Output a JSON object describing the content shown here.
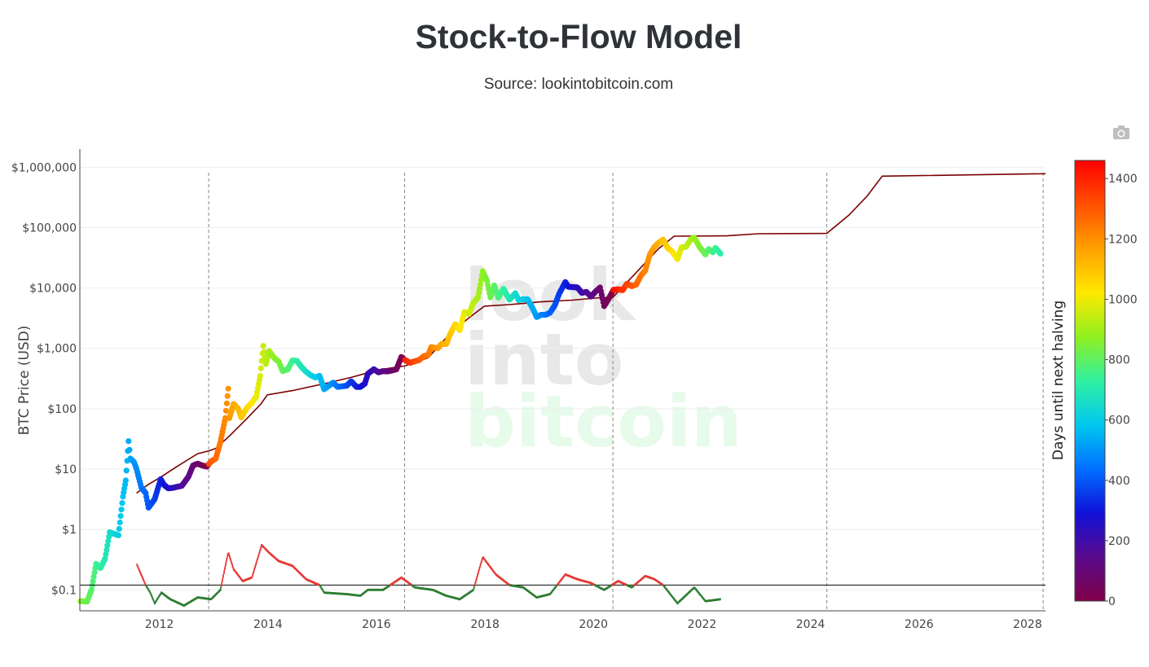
{
  "title": "Stock-to-Flow Model",
  "subtitle": "Source: lookintobitcoin.com",
  "toolbar": {
    "camera_icon": "camera-icon"
  },
  "watermark": {
    "line1": "look",
    "line2": "into",
    "line3": "bitcoin"
  },
  "chart_data": {
    "type": "scatter",
    "title": "Stock-to-Flow Model",
    "xlabel": "",
    "ylabel": "BTC Price (USD)",
    "y_scale": "log",
    "xlim": [
      "2010-07-15",
      "2028-05-01"
    ],
    "ylim": [
      0.045,
      2000000
    ],
    "x_ticks": [
      "2012",
      "2014",
      "2016",
      "2018",
      "2020",
      "2022",
      "2024",
      "2026",
      "2028"
    ],
    "y_ticks": [
      {
        "value": 0.1,
        "label": "$0.1"
      },
      {
        "value": 1,
        "label": "$1"
      },
      {
        "value": 10,
        "label": "$10"
      },
      {
        "value": 100,
        "label": "$100"
      },
      {
        "value": 1000,
        "label": "$1,000"
      },
      {
        "value": 10000,
        "label": "$10,000"
      },
      {
        "value": 100000,
        "label": "$100,000"
      },
      {
        "value": 1000000,
        "label": "$1,000,000"
      }
    ],
    "grid": true,
    "halving_lines": [
      "2012-11-28",
      "2016-07-09",
      "2020-05-11",
      "2024-04-20",
      "2028-04-15"
    ],
    "colorbar": {
      "title": "Days until next halving",
      "min": 0,
      "max": 1460,
      "ticks": [
        0,
        200,
        400,
        600,
        800,
        1000,
        1200,
        1400
      ],
      "colors": [
        "#800048",
        "#5a0a8c",
        "#1010d8",
        "#0070ff",
        "#00c8f0",
        "#30f0a0",
        "#90f020",
        "#ffe800",
        "#ffa000",
        "#ff5000",
        "#ff0000"
      ]
    },
    "series": [
      {
        "kind": "price",
        "points": [
          [
            "2010-07-20",
            0.065
          ],
          [
            "2010-09-01",
            0.064
          ],
          [
            "2010-10-01",
            0.1
          ],
          [
            "2010-11-01",
            0.27
          ],
          [
            "2010-12-01",
            0.23
          ],
          [
            "2011-01-01",
            0.33
          ],
          [
            "2011-02-01",
            0.9
          ],
          [
            "2011-03-01",
            0.85
          ],
          [
            "2011-04-01",
            0.8
          ],
          [
            "2011-05-01",
            3.5
          ],
          [
            "2011-05-20",
            6.5
          ],
          [
            "2011-06-08",
            29
          ],
          [
            "2011-06-20",
            15
          ],
          [
            "2011-07-15",
            13
          ],
          [
            "2011-08-01",
            10
          ],
          [
            "2011-09-01",
            5
          ],
          [
            "2011-10-01",
            4
          ],
          [
            "2011-10-20",
            2.3
          ],
          [
            "2011-11-10",
            2.7
          ],
          [
            "2011-12-01",
            3.2
          ],
          [
            "2012-01-10",
            6.8
          ],
          [
            "2012-02-01",
            5.5
          ],
          [
            "2012-03-01",
            4.8
          ],
          [
            "2012-04-01",
            4.9
          ],
          [
            "2012-06-01",
            5.3
          ],
          [
            "2012-07-15",
            7.5
          ],
          [
            "2012-08-15",
            11.5
          ],
          [
            "2012-09-15",
            12.3
          ],
          [
            "2012-10-15",
            11.5
          ],
          [
            "2012-11-15",
            11
          ],
          [
            "2012-12-15",
            13.4
          ],
          [
            "2013-01-15",
            15
          ],
          [
            "2013-02-15",
            28
          ],
          [
            "2013-03-20",
            70
          ],
          [
            "2013-04-09",
            215
          ],
          [
            "2013-04-16",
            70
          ],
          [
            "2013-05-15",
            120
          ],
          [
            "2013-06-15",
            100
          ],
          [
            "2013-07-05",
            72
          ],
          [
            "2013-08-15",
            105
          ],
          [
            "2013-09-15",
            125
          ],
          [
            "2013-10-15",
            160
          ],
          [
            "2013-11-10",
            350
          ],
          [
            "2013-12-01",
            1100
          ],
          [
            "2013-12-18",
            550
          ],
          [
            "2014-01-10",
            900
          ],
          [
            "2014-02-10",
            700
          ],
          [
            "2014-03-15",
            600
          ],
          [
            "2014-04-10",
            420
          ],
          [
            "2014-05-15",
            450
          ],
          [
            "2014-06-15",
            630
          ],
          [
            "2014-07-15",
            620
          ],
          [
            "2014-08-18",
            480
          ],
          [
            "2014-09-15",
            410
          ],
          [
            "2014-10-15",
            360
          ],
          [
            "2014-11-15",
            330
          ],
          [
            "2014-12-15",
            350
          ],
          [
            "2015-01-14",
            210
          ],
          [
            "2015-02-15",
            240
          ],
          [
            "2015-03-15",
            270
          ],
          [
            "2015-04-15",
            230
          ],
          [
            "2015-05-15",
            235
          ],
          [
            "2015-06-15",
            240
          ],
          [
            "2015-07-15",
            285
          ],
          [
            "2015-08-20",
            230
          ],
          [
            "2015-09-15",
            230
          ],
          [
            "2015-10-15",
            260
          ],
          [
            "2015-11-05",
            380
          ],
          [
            "2015-12-15",
            450
          ],
          [
            "2016-01-15",
            400
          ],
          [
            "2016-02-15",
            420
          ],
          [
            "2016-03-15",
            415
          ],
          [
            "2016-04-15",
            430
          ],
          [
            "2016-05-15",
            450
          ],
          [
            "2016-06-17",
            720
          ],
          [
            "2016-07-08",
            650
          ],
          [
            "2016-08-15",
            575
          ],
          [
            "2016-09-15",
            610
          ],
          [
            "2016-10-15",
            640
          ],
          [
            "2016-11-15",
            740
          ],
          [
            "2016-12-15",
            780
          ],
          [
            "2017-01-05",
            1050
          ],
          [
            "2017-02-15",
            1000
          ],
          [
            "2017-03-15",
            1180
          ],
          [
            "2017-04-15",
            1180
          ],
          [
            "2017-05-15",
            1800
          ],
          [
            "2017-06-15",
            2500
          ],
          [
            "2017-07-15",
            2000
          ],
          [
            "2017-08-15",
            4000
          ],
          [
            "2017-09-15",
            3700
          ],
          [
            "2017-10-15",
            5700
          ],
          [
            "2017-11-15",
            7000
          ],
          [
            "2017-12-17",
            19000
          ],
          [
            "2018-01-15",
            13000
          ],
          [
            "2018-02-06",
            7000
          ],
          [
            "2018-03-05",
            11000
          ],
          [
            "2018-04-01",
            6900
          ],
          [
            "2018-05-05",
            9700
          ],
          [
            "2018-06-15",
            6400
          ],
          [
            "2018-07-25",
            8200
          ],
          [
            "2018-08-15",
            6300
          ],
          [
            "2018-09-15",
            6500
          ],
          [
            "2018-10-15",
            6500
          ],
          [
            "2018-11-20",
            4500
          ],
          [
            "2018-12-15",
            3300
          ],
          [
            "2019-01-15",
            3600
          ],
          [
            "2019-02-15",
            3600
          ],
          [
            "2019-03-15",
            3900
          ],
          [
            "2019-04-15",
            5100
          ],
          [
            "2019-05-15",
            8000
          ],
          [
            "2019-06-26",
            12500
          ],
          [
            "2019-07-15",
            10500
          ],
          [
            "2019-08-15",
            10300
          ],
          [
            "2019-09-15",
            10200
          ],
          [
            "2019-10-15",
            8300
          ],
          [
            "2019-11-15",
            8600
          ],
          [
            "2019-12-15",
            7200
          ],
          [
            "2020-01-15",
            8700
          ],
          [
            "2020-02-15",
            10200
          ],
          [
            "2020-03-13",
            5000
          ],
          [
            "2020-04-15",
            6800
          ],
          [
            "2020-05-15",
            9300
          ],
          [
            "2020-06-15",
            9500
          ],
          [
            "2020-07-15",
            9200
          ],
          [
            "2020-08-15",
            11800
          ],
          [
            "2020-09-15",
            10700
          ],
          [
            "2020-10-15",
            11400
          ],
          [
            "2020-11-15",
            16000
          ],
          [
            "2020-12-15",
            19500
          ],
          [
            "2021-01-15",
            36000
          ],
          [
            "2021-02-15",
            48000
          ],
          [
            "2021-03-15",
            56000
          ],
          [
            "2021-04-14",
            63000
          ],
          [
            "2021-05-15",
            46000
          ],
          [
            "2021-06-15",
            40000
          ],
          [
            "2021-07-20",
            30000
          ],
          [
            "2021-08-15",
            47000
          ],
          [
            "2021-09-15",
            48000
          ],
          [
            "2021-10-20",
            65000
          ],
          [
            "2021-11-10",
            68000
          ],
          [
            "2021-12-15",
            48000
          ],
          [
            "2022-01-24",
            36000
          ],
          [
            "2022-02-15",
            44000
          ],
          [
            "2022-03-15",
            39000
          ],
          [
            "2022-04-01",
            46000
          ],
          [
            "2022-04-20",
            41000
          ],
          [
            "2022-05-05",
            37000
          ]
        ]
      },
      {
        "kind": "s2f_model",
        "color": "#7a0000",
        "points": [
          [
            "2011-08-01",
            4
          ],
          [
            "2011-10-15",
            5.5
          ],
          [
            "2012-01-15",
            7.5
          ],
          [
            "2012-04-15",
            10.5
          ],
          [
            "2012-07-15",
            14.5
          ],
          [
            "2012-09-15",
            18
          ],
          [
            "2012-11-28",
            20
          ],
          [
            "2013-01-15",
            22
          ],
          [
            "2013-04-15",
            35
          ],
          [
            "2013-08-15",
            70
          ],
          [
            "2013-11-15",
            120
          ],
          [
            "2013-12-28",
            170
          ],
          [
            "2014-06-15",
            200
          ],
          [
            "2015-01-15",
            260
          ],
          [
            "2015-07-15",
            330
          ],
          [
            "2016-01-15",
            440
          ],
          [
            "2016-07-09",
            510
          ],
          [
            "2016-12-15",
            700
          ],
          [
            "2017-05-15",
            1800
          ],
          [
            "2017-09-15",
            3200
          ],
          [
            "2017-12-28",
            5000
          ],
          [
            "2018-06-15",
            5300
          ],
          [
            "2019-01-15",
            5900
          ],
          [
            "2019-08-15",
            6300
          ],
          [
            "2020-02-15",
            6900
          ],
          [
            "2020-05-11",
            7000
          ],
          [
            "2020-10-15",
            18000
          ],
          [
            "2021-03-15",
            45000
          ],
          [
            "2021-06-28",
            72000
          ],
          [
            "2022-06-15",
            73000
          ],
          [
            "2023-01-15",
            79000
          ],
          [
            "2024-04-20",
            80000
          ],
          [
            "2024-09-15",
            160000
          ],
          [
            "2025-01-15",
            330000
          ],
          [
            "2025-04-28",
            710000
          ],
          [
            "2028-05-01",
            780000
          ]
        ]
      },
      {
        "kind": "ratio",
        "threshold": 0.12,
        "points": [
          [
            "2011-08-01",
            0.27
          ],
          [
            "2011-10-01",
            0.12
          ],
          [
            "2011-11-01",
            0.09
          ],
          [
            "2011-12-01",
            0.06
          ],
          [
            "2012-01-15",
            0.09
          ],
          [
            "2012-03-15",
            0.07
          ],
          [
            "2012-06-15",
            0.055
          ],
          [
            "2012-09-15",
            0.075
          ],
          [
            "2012-12-15",
            0.07
          ],
          [
            "2013-02-15",
            0.1
          ],
          [
            "2013-04-09",
            0.42
          ],
          [
            "2013-05-15",
            0.22
          ],
          [
            "2013-07-15",
            0.14
          ],
          [
            "2013-09-15",
            0.16
          ],
          [
            "2013-11-20",
            0.55
          ],
          [
            "2014-01-15",
            0.4
          ],
          [
            "2014-03-15",
            0.3
          ],
          [
            "2014-06-15",
            0.25
          ],
          [
            "2014-09-15",
            0.15
          ],
          [
            "2014-12-15",
            0.12
          ],
          [
            "2015-01-15",
            0.09
          ],
          [
            "2015-06-15",
            0.085
          ],
          [
            "2015-09-15",
            0.08
          ],
          [
            "2015-11-05",
            0.1
          ],
          [
            "2016-02-15",
            0.1
          ],
          [
            "2016-06-17",
            0.16
          ],
          [
            "2016-09-15",
            0.11
          ],
          [
            "2017-01-15",
            0.1
          ],
          [
            "2017-04-15",
            0.08
          ],
          [
            "2017-07-15",
            0.07
          ],
          [
            "2017-10-15",
            0.1
          ],
          [
            "2017-12-17",
            0.35
          ],
          [
            "2018-03-15",
            0.18
          ],
          [
            "2018-06-15",
            0.12
          ],
          [
            "2018-09-15",
            0.11
          ],
          [
            "2018-12-15",
            0.075
          ],
          [
            "2019-03-15",
            0.085
          ],
          [
            "2019-06-26",
            0.18
          ],
          [
            "2019-09-15",
            0.15
          ],
          [
            "2019-12-15",
            0.13
          ],
          [
            "2020-03-13",
            0.1
          ],
          [
            "2020-06-15",
            0.14
          ],
          [
            "2020-09-15",
            0.11
          ],
          [
            "2020-12-15",
            0.17
          ],
          [
            "2021-02-15",
            0.15
          ],
          [
            "2021-04-14",
            0.12
          ],
          [
            "2021-07-20",
            0.06
          ],
          [
            "2021-11-10",
            0.11
          ],
          [
            "2022-01-24",
            0.065
          ],
          [
            "2022-05-05",
            0.07
          ]
        ]
      }
    ]
  }
}
